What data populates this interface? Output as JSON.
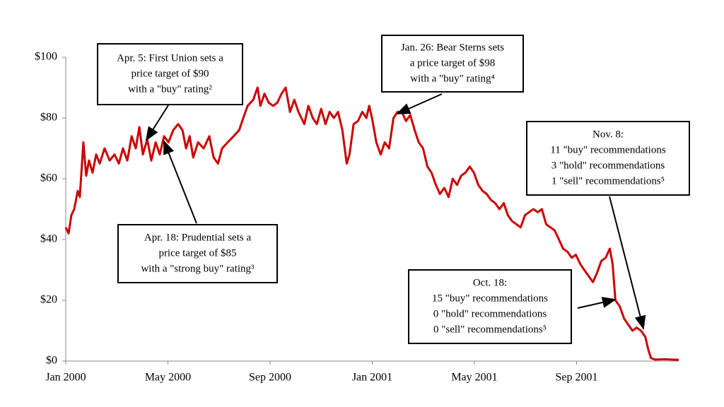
{
  "chart_data": {
    "type": "line",
    "x": [
      0,
      0.11,
      0.22,
      0.33,
      0.47,
      0.55,
      0.69,
      0.8,
      0.91,
      1.05,
      1.19,
      1.33,
      1.52,
      1.72,
      1.91,
      2.08,
      2.24,
      2.41,
      2.58,
      2.74,
      2.88,
      3.02,
      3.19,
      3.35,
      3.52,
      3.68,
      3.85,
      4.02,
      4.21,
      4.4,
      4.57,
      4.71,
      4.85,
      4.99,
      5.18,
      5.4,
      5.62,
      5.79,
      5.96,
      6.12,
      6.34,
      6.57,
      6.79,
      6.95,
      7.12,
      7.34,
      7.51,
      7.62,
      7.78,
      7.95,
      8.12,
      8.28,
      8.45,
      8.61,
      8.78,
      8.95,
      9.11,
      9.34,
      9.5,
      9.67,
      9.83,
      10,
      10.17,
      10.33,
      10.5,
      10.66,
      10.83,
      11,
      11.11,
      11.27,
      11.44,
      11.61,
      11.77,
      11.88,
      11.99,
      12.16,
      12.33,
      12.49,
      12.66,
      12.83,
      12.99,
      13.16,
      13.32,
      13.49,
      13.66,
      13.82,
      13.99,
      14.16,
      14.32,
      14.49,
      14.65,
      14.82,
      14.99,
      15.15,
      15.32,
      15.48,
      15.65,
      15.82,
      15.98,
      16.15,
      16.32,
      16.48,
      16.65,
      16.81,
      16.98,
      17.15,
      17.31,
      17.48,
      17.65,
      17.81,
      17.98,
      18.14,
      18.31,
      18.48,
      18.64,
      18.81,
      18.98,
      19.14,
      19.31,
      19.47,
      19.64,
      19.81,
      19.97,
      20.14,
      20.3,
      20.47,
      20.64,
      20.8,
      20.97,
      21.14,
      21.3,
      21.41,
      21.52,
      21.69,
      21.86,
      22.02,
      22.19,
      22.35,
      22.52,
      22.69,
      22.8,
      22.91,
      23.07,
      23.46,
      23.74,
      24
    ],
    "series": [
      {
        "color": "#cc0000",
        "values": [
          44,
          42,
          48,
          50,
          56,
          54,
          72,
          61,
          66,
          62,
          68,
          65,
          70,
          66,
          68,
          65,
          70,
          66,
          74,
          70,
          77,
          68,
          73,
          66,
          72,
          68,
          74,
          72,
          76,
          78,
          76,
          70,
          74,
          67,
          72,
          70,
          74,
          67,
          65,
          70,
          72,
          74,
          76,
          80,
          84,
          86,
          90,
          84,
          88,
          85,
          84,
          85,
          88,
          90,
          82,
          86,
          82,
          78,
          84,
          80,
          78,
          83,
          78,
          82,
          80,
          82,
          76,
          65,
          68,
          78,
          79,
          82,
          80,
          84,
          80,
          72,
          68,
          72,
          70,
          80,
          82,
          82,
          79,
          81,
          76,
          72,
          70,
          64,
          62,
          58,
          55,
          57,
          54,
          60,
          58,
          61,
          62,
          64,
          62,
          58,
          56,
          55,
          53,
          52,
          50,
          52,
          48,
          46,
          45,
          44,
          48,
          49,
          50,
          49,
          50,
          45,
          44,
          43,
          40,
          37,
          36,
          34,
          35,
          32,
          30,
          28,
          26,
          29,
          33,
          34,
          37,
          32,
          20,
          18,
          14,
          12,
          10,
          11,
          10,
          8,
          4,
          1,
          0.5,
          0.6,
          0.5,
          0.4
        ]
      }
    ],
    "xlim": [
      0,
      24
    ],
    "xticks": [
      {
        "value": 0,
        "label": "Jan 2000"
      },
      {
        "value": 4,
        "label": "May 2000"
      },
      {
        "value": 8,
        "label": "Sep 2000"
      },
      {
        "value": 12,
        "label": "Jan 2001"
      },
      {
        "value": 16,
        "label": "May 2001"
      },
      {
        "value": 20,
        "label": "Sep 2001"
      }
    ],
    "ylim": [
      0,
      100
    ],
    "yticks": [
      {
        "value": 0,
        "label": "$0"
      },
      {
        "value": 20,
        "label": "$20"
      },
      {
        "value": 40,
        "label": "$40"
      },
      {
        "value": 60,
        "label": "$60"
      },
      {
        "value": 80,
        "label": "$80"
      },
      {
        "value": 100,
        "label": "$100"
      }
    ],
    "annotations": [
      {
        "lines": [
          "Apr. 5: First Union sets a",
          "price target of $90",
          "with a \"buy\" rating²"
        ]
      },
      {
        "lines": [
          "Apr. 18: Prudential sets a",
          "price target of $85",
          "with a \"strong buy\" rating³"
        ]
      },
      {
        "lines": [
          "Jan. 26: Bear Sterns sets",
          "a price target of $98",
          "with a \"buy\" rating⁴"
        ]
      },
      {
        "lines": [
          "Nov. 8:",
          "11 \"buy\" recommendations",
          "3 \"hold\" recommendations",
          "1 \"sell\" recommendations⁵"
        ]
      },
      {
        "lines": [
          "Oct. 18:",
          "15 \"buy\" recommendations",
          "0 \"hold\" recommendations",
          "0 \"sell\" recommendations⁵"
        ]
      }
    ]
  }
}
